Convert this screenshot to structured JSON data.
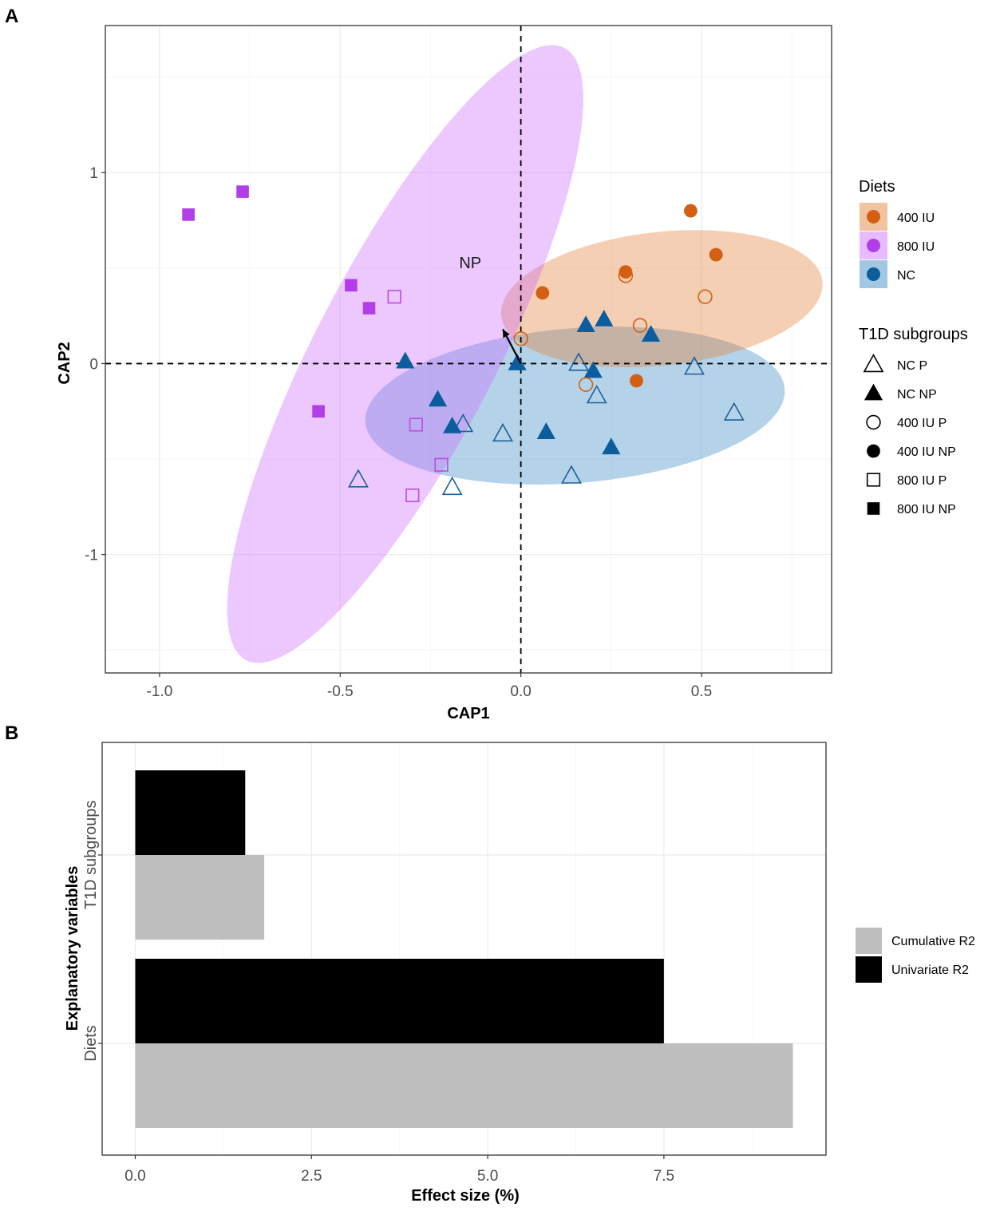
{
  "panels": {
    "a": {
      "label": "A",
      "chart_data": {
        "type": "scatter",
        "xlabel": "CAP1",
        "ylabel": "CAP2",
        "xlim": [
          -1.15,
          0.86
        ],
        "ylim": [
          -1.62,
          1.77
        ],
        "xticks": [
          -1.0,
          -0.5,
          0.0,
          0.5
        ],
        "xtick_labels": [
          "-1.0",
          "-0.5",
          "0.0",
          "0.5"
        ],
        "yticks": [
          1,
          0,
          -1
        ],
        "ytick_labels": [
          "1",
          "0",
          "-1"
        ],
        "reference_lines": {
          "x": 0,
          "y": 0,
          "style": "dashed"
        },
        "arrow": {
          "label": "NP",
          "from": [
            0,
            0
          ],
          "to": [
            -0.05,
            0.18
          ]
        },
        "ellipses": [
          {
            "diet": "NC",
            "center": [
              0.15,
              -0.22
            ],
            "semi_axes": [
              0.59,
              0.4
            ],
            "angle_deg": 14,
            "color": "#2e86c1",
            "opacity": 0.36
          },
          {
            "diet": "400 IU",
            "center": [
              0.39,
              0.34
            ],
            "semi_axes": [
              0.46,
              0.34
            ],
            "angle_deg": 22,
            "color": "#e07b2d",
            "opacity": 0.36
          },
          {
            "diet": "800 IU",
            "center": [
              -0.32,
              0.05
            ],
            "semi_axes": [
              0.27,
              1.67
            ],
            "angle_deg": -14.5,
            "color": "#cc66ff",
            "opacity": 0.36
          }
        ],
        "series": [
          {
            "name": "NC P",
            "diet": "NC",
            "subgroup": "P",
            "shape": "triangle",
            "filled": false,
            "color": "#1f5f99",
            "points": [
              [
                -0.45,
                -0.61
              ],
              [
                -0.16,
                -0.32
              ],
              [
                -0.19,
                -0.65
              ],
              [
                -0.05,
                -0.37
              ],
              [
                0.16,
                0.0
              ],
              [
                0.21,
                -0.17
              ],
              [
                0.14,
                -0.59
              ],
              [
                0.48,
                -0.02
              ],
              [
                0.59,
                -0.26
              ]
            ]
          },
          {
            "name": "NC NP",
            "diet": "NC",
            "subgroup": "NP",
            "shape": "triangle",
            "filled": true,
            "color": "#0b5d9e",
            "points": [
              [
                -0.32,
                0.01
              ],
              [
                -0.23,
                -0.19
              ],
              [
                -0.19,
                -0.33
              ],
              [
                -0.01,
                0.0
              ],
              [
                0.07,
                -0.36
              ],
              [
                0.18,
                0.2
              ],
              [
                0.23,
                0.23
              ],
              [
                0.2,
                -0.04
              ],
              [
                0.36,
                0.15
              ],
              [
                0.25,
                -0.44
              ]
            ]
          },
          {
            "name": "400 IU P",
            "diet": "400 IU",
            "subgroup": "P",
            "shape": "circle",
            "filled": false,
            "color": "#d35f13",
            "points": [
              [
                0.0,
                0.13
              ],
              [
                0.18,
                -0.11
              ],
              [
                0.29,
                0.46
              ],
              [
                0.33,
                0.2
              ],
              [
                0.51,
                0.35
              ]
            ]
          },
          {
            "name": "400 IU NP",
            "diet": "400 IU",
            "subgroup": "NP",
            "shape": "circle",
            "filled": true,
            "color": "#d35f13",
            "points": [
              [
                0.06,
                0.37
              ],
              [
                0.29,
                0.48
              ],
              [
                0.32,
                -0.09
              ],
              [
                0.47,
                0.8
              ],
              [
                0.54,
                0.57
              ]
            ]
          },
          {
            "name": "800 IU P",
            "diet": "800 IU",
            "subgroup": "P",
            "shape": "square",
            "filled": false,
            "color": "#b84ddf",
            "points": [
              [
                -0.35,
                0.35
              ],
              [
                -0.29,
                -0.32
              ],
              [
                -0.22,
                -0.53
              ],
              [
                -0.3,
                -0.69
              ]
            ]
          },
          {
            "name": "800 IU NP",
            "diet": "800 IU",
            "subgroup": "NP",
            "shape": "square",
            "filled": true,
            "color": "#b23ee8",
            "points": [
              [
                -0.92,
                0.78
              ],
              [
                -0.77,
                0.9
              ],
              [
                -0.47,
                0.41
              ],
              [
                -0.42,
                0.29
              ],
              [
                -0.56,
                -0.25
              ]
            ]
          }
        ]
      },
      "legend": {
        "diets_title": "Diets",
        "diets": [
          {
            "label": "400 IU",
            "color": "#e07b2d",
            "dot": "#d35f13"
          },
          {
            "label": "800 IU",
            "color": "#cc66ff",
            "dot": "#b23ee8"
          },
          {
            "label": "NC",
            "color": "#2e86c1",
            "dot": "#0b5d9e"
          }
        ],
        "subgroups_title": "T1D subgroups",
        "subgroups": [
          {
            "label": "NC P",
            "shape": "triangle",
            "filled": false
          },
          {
            "label": "NC NP",
            "shape": "triangle",
            "filled": true
          },
          {
            "label": "400 IU P",
            "shape": "circle",
            "filled": false
          },
          {
            "label": "400 IU NP",
            "shape": "circle",
            "filled": true
          },
          {
            "label": "800 IU P",
            "shape": "square",
            "filled": false
          },
          {
            "label": "800 IU NP",
            "shape": "square",
            "filled": true
          }
        ]
      }
    },
    "b": {
      "label": "B",
      "chart_data": {
        "type": "bar",
        "orientation": "horizontal",
        "categories": [
          "Diets",
          "T1D subgroups"
        ],
        "series": [
          {
            "name": "Cumulative R2",
            "color": "#bebebe",
            "values": [
              9.33,
              1.83
            ]
          },
          {
            "name": "Univariate R2",
            "color": "#000000",
            "values": [
              7.5,
              1.56
            ]
          }
        ],
        "xlabel": "Effect size (%)",
        "ylabel": "Explanatory variables",
        "xlim": [
          -0.47,
          9.8
        ],
        "xticks": [
          0.0,
          2.5,
          5.0,
          7.5
        ],
        "xtick_labels": [
          "0.0",
          "2.5",
          "5.0",
          "7.5"
        ],
        "legend": [
          "Cumulative R2",
          "Univariate R2"
        ]
      }
    }
  }
}
